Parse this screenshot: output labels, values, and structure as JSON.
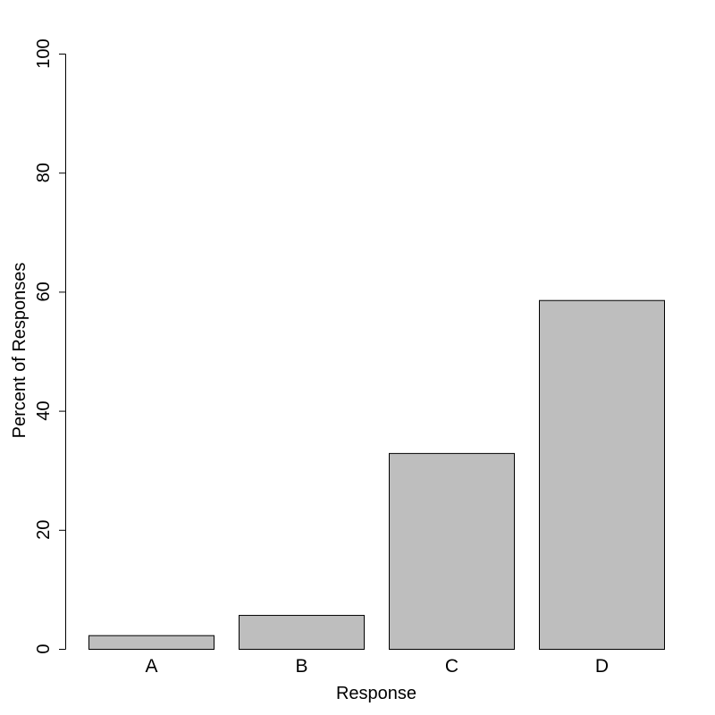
{
  "chart_data": {
    "type": "bar",
    "title": "",
    "xlabel": "Response",
    "ylabel": "Percent of Responses",
    "categories": [
      "A",
      "B",
      "C",
      "D"
    ],
    "values": [
      2.3,
      5.7,
      32.9,
      58.6
    ],
    "ylim": [
      0,
      100
    ],
    "yticks": [
      0,
      20,
      40,
      60,
      80,
      100
    ],
    "ytick_labels": [
      "0",
      "20",
      "40",
      "60",
      "80",
      "100"
    ],
    "grid": false,
    "legend": "none",
    "bar_color": "#bebebe",
    "bar_border_color": "#000000"
  }
}
